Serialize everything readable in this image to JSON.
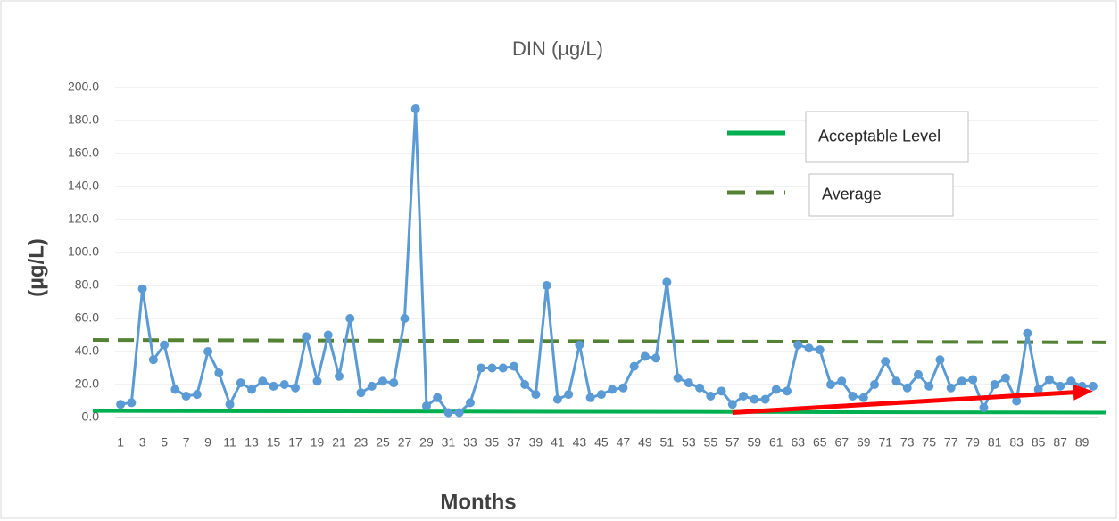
{
  "chart_data": {
    "type": "line",
    "title": "DIN  (µg/L)",
    "y_label": "(µg/L)",
    "x_label": "Months",
    "categories": [
      1,
      null,
      3,
      null,
      5,
      null,
      7,
      null,
      9,
      null,
      11,
      null,
      13,
      null,
      15,
      null,
      17,
      null,
      19,
      null,
      21,
      null,
      23,
      null,
      25,
      null,
      27,
      null,
      29,
      null,
      31,
      null,
      33,
      null,
      35,
      null,
      37,
      null,
      39,
      null,
      41,
      null,
      43,
      null,
      45,
      null,
      47,
      null,
      49,
      null,
      51,
      null,
      53,
      null,
      55,
      null,
      57,
      null,
      59,
      null,
      61,
      null,
      63,
      null,
      65,
      null,
      67,
      null,
      69,
      null,
      71,
      null,
      73,
      null,
      75,
      null,
      77,
      null,
      79,
      null,
      81,
      null,
      83,
      null,
      85,
      null,
      87,
      null,
      89,
      null
    ],
    "series": [
      {
        "color": "#5b9bd5",
        "values": [
          8,
          9,
          78,
          35,
          44,
          17,
          13,
          14,
          40,
          27,
          8,
          21,
          17,
          22,
          19,
          20,
          18,
          49,
          22,
          50,
          25,
          60,
          15,
          19,
          22,
          21,
          60,
          187,
          7,
          12,
          3,
          3,
          9,
          30,
          30,
          30,
          31,
          20,
          14,
          80,
          11,
          14,
          44,
          12,
          14,
          17,
          18,
          31,
          37,
          36,
          82,
          24,
          21,
          18,
          13,
          16,
          8,
          13,
          11,
          11,
          17,
          16,
          44,
          42,
          41,
          20,
          22,
          13,
          12,
          20,
          34,
          22,
          18,
          26,
          19,
          35,
          18,
          22,
          23,
          6,
          20,
          24,
          10,
          51,
          17,
          23,
          19,
          22,
          19,
          19
        ]
      }
    ],
    "reference_lines": [
      {
        "name": "Acceptable Level",
        "color": "#00b050",
        "dashed": false,
        "start": 4,
        "end": 3
      },
      {
        "name": "Average",
        "color": "#548235",
        "dashed": true,
        "start": 47,
        "end": 45.5
      }
    ],
    "trend_arrow": {
      "color": "#ff0000",
      "x_start": 57,
      "x_end": 90,
      "y_start": 3,
      "y_end": 16
    },
    "ylim": [
      0,
      200
    ],
    "yticks": [
      {
        "value": 0,
        "label": "0.0"
      },
      {
        "value": 20,
        "label": "20.0"
      },
      {
        "value": 40,
        "label": "40.0"
      },
      {
        "value": 60,
        "label": "60.0"
      },
      {
        "value": 80,
        "label": "80.0"
      },
      {
        "value": 100,
        "label": "100.0"
      },
      {
        "value": 120,
        "label": "120.0"
      },
      {
        "value": 140,
        "label": "140.0"
      },
      {
        "value": 160,
        "label": "160.0"
      },
      {
        "value": 180,
        "label": "180.0"
      },
      {
        "value": 200,
        "label": "200.0"
      }
    ],
    "grid": true
  }
}
